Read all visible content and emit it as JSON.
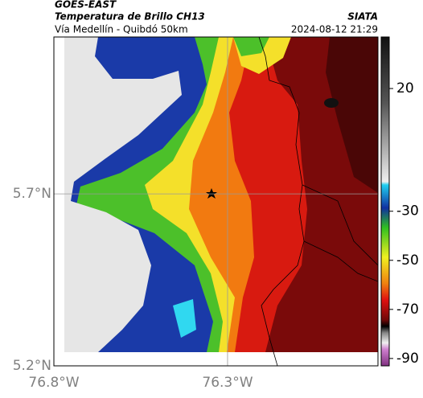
{
  "header": {
    "source": "GOES-EAST",
    "title": "Temperatura de Brillo CH13",
    "brand": "SIATA",
    "subtitle": "Vía Medellín - Quibdó 50km",
    "timestamp": "2024-08-12 21:29"
  },
  "map": {
    "xlim": [
      -76.8,
      -75.867
    ],
    "ylim": [
      5.2,
      6.156
    ],
    "xticks": [
      {
        "value": -76.8,
        "label": "76.8°W"
      },
      {
        "value": -76.3,
        "label": "76.3°W"
      }
    ],
    "yticks": [
      {
        "value": 5.2,
        "label": "5.2°N"
      },
      {
        "value": 5.7,
        "label": "5.7°N"
      }
    ],
    "grid": true
  },
  "colorbar": {
    "lim": [
      41,
      -93
    ],
    "ticks": [
      20,
      -30,
      -50,
      -70,
      -90
    ]
  }
}
